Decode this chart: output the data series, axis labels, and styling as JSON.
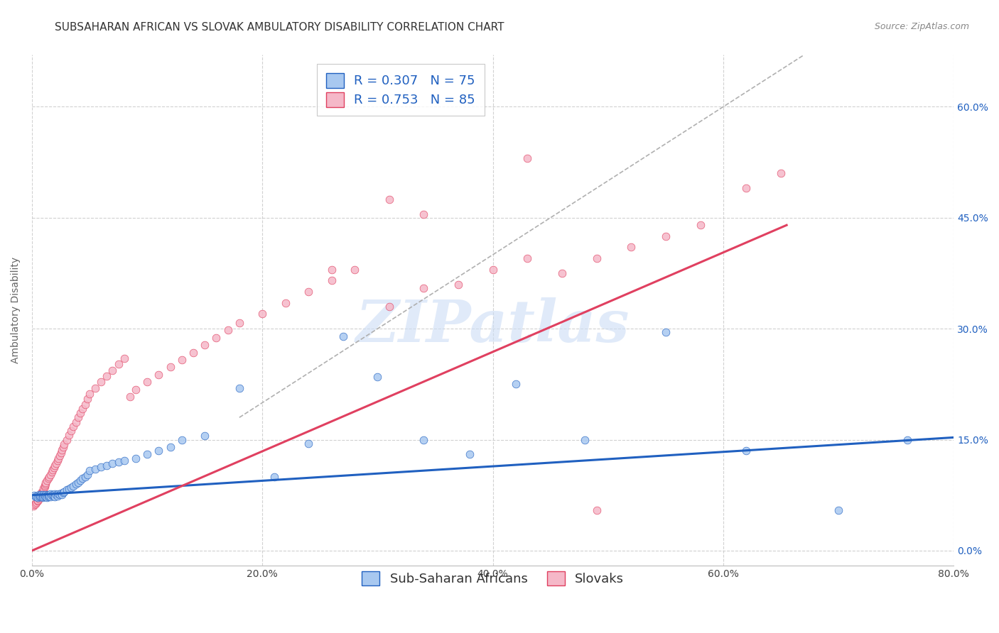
{
  "title": "SUBSAHARAN AFRICAN VS SLOVAK AMBULATORY DISABILITY CORRELATION CHART",
  "source": "Source: ZipAtlas.com",
  "ylabel": "Ambulatory Disability",
  "xlabel_ticks": [
    "0.0%",
    "20.0%",
    "40.0%",
    "60.0%",
    "80.0%"
  ],
  "ylabel_ticks": [
    "0.0%",
    "15.0%",
    "30.0%",
    "45.0%",
    "60.0%"
  ],
  "xlim": [
    0.0,
    0.8
  ],
  "ylim": [
    -0.02,
    0.67
  ],
  "blue_R": 0.307,
  "blue_N": 75,
  "pink_R": 0.753,
  "pink_N": 85,
  "blue_color": "#a8c8f0",
  "pink_color": "#f5b8c8",
  "blue_line_color": "#2060c0",
  "pink_line_color": "#e04060",
  "diagonal_line_color": "#b0b0b0",
  "legend_label_blue": "Sub-Saharan Africans",
  "legend_label_pink": "Slovaks",
  "blue_line_x": [
    0.0,
    0.8
  ],
  "blue_line_y": [
    0.075,
    0.153
  ],
  "pink_line_x": [
    0.0,
    0.655
  ],
  "pink_line_y": [
    0.0,
    0.44
  ],
  "diag_line_x": [
    0.18,
    0.67
  ],
  "diag_line_y": [
    0.18,
    0.67
  ],
  "blue_scatter_x": [
    0.002,
    0.003,
    0.004,
    0.005,
    0.006,
    0.006,
    0.007,
    0.007,
    0.008,
    0.008,
    0.009,
    0.009,
    0.01,
    0.01,
    0.011,
    0.011,
    0.012,
    0.012,
    0.013,
    0.013,
    0.014,
    0.014,
    0.015,
    0.015,
    0.016,
    0.016,
    0.017,
    0.018,
    0.019,
    0.02,
    0.02,
    0.021,
    0.022,
    0.023,
    0.024,
    0.025,
    0.026,
    0.027,
    0.028,
    0.03,
    0.032,
    0.034,
    0.036,
    0.038,
    0.04,
    0.042,
    0.044,
    0.046,
    0.048,
    0.05,
    0.055,
    0.06,
    0.065,
    0.07,
    0.075,
    0.08,
    0.09,
    0.1,
    0.11,
    0.12,
    0.13,
    0.15,
    0.18,
    0.21,
    0.24,
    0.27,
    0.3,
    0.34,
    0.38,
    0.42,
    0.48,
    0.55,
    0.62,
    0.7,
    0.76
  ],
  "blue_scatter_y": [
    0.075,
    0.073,
    0.074,
    0.072,
    0.076,
    0.073,
    0.075,
    0.074,
    0.076,
    0.073,
    0.075,
    0.072,
    0.076,
    0.073,
    0.075,
    0.074,
    0.076,
    0.073,
    0.075,
    0.072,
    0.076,
    0.073,
    0.075,
    0.074,
    0.077,
    0.073,
    0.075,
    0.076,
    0.074,
    0.077,
    0.073,
    0.076,
    0.074,
    0.077,
    0.076,
    0.078,
    0.076,
    0.079,
    0.08,
    0.082,
    0.083,
    0.085,
    0.087,
    0.09,
    0.092,
    0.095,
    0.098,
    0.1,
    0.103,
    0.108,
    0.11,
    0.113,
    0.115,
    0.118,
    0.12,
    0.122,
    0.125,
    0.13,
    0.135,
    0.14,
    0.15,
    0.155,
    0.22,
    0.1,
    0.145,
    0.29,
    0.235,
    0.15,
    0.13,
    0.225,
    0.15,
    0.295,
    0.135,
    0.055,
    0.15
  ],
  "pink_scatter_x": [
    0.001,
    0.002,
    0.003,
    0.004,
    0.005,
    0.005,
    0.006,
    0.006,
    0.007,
    0.007,
    0.008,
    0.008,
    0.009,
    0.01,
    0.01,
    0.011,
    0.011,
    0.012,
    0.012,
    0.013,
    0.014,
    0.015,
    0.016,
    0.017,
    0.018,
    0.019,
    0.02,
    0.021,
    0.022,
    0.023,
    0.024,
    0.025,
    0.026,
    0.027,
    0.028,
    0.03,
    0.032,
    0.034,
    0.036,
    0.038,
    0.04,
    0.042,
    0.044,
    0.046,
    0.048,
    0.05,
    0.055,
    0.06,
    0.065,
    0.07,
    0.075,
    0.08,
    0.085,
    0.09,
    0.1,
    0.11,
    0.12,
    0.13,
    0.14,
    0.15,
    0.16,
    0.17,
    0.18,
    0.2,
    0.22,
    0.24,
    0.26,
    0.28,
    0.31,
    0.34,
    0.37,
    0.4,
    0.43,
    0.46,
    0.49,
    0.52,
    0.55,
    0.58,
    0.62,
    0.65,
    0.34,
    0.26,
    0.31,
    0.43,
    0.49
  ],
  "pink_scatter_y": [
    0.06,
    0.062,
    0.063,
    0.065,
    0.067,
    0.068,
    0.07,
    0.072,
    0.074,
    0.075,
    0.077,
    0.079,
    0.08,
    0.082,
    0.084,
    0.086,
    0.088,
    0.09,
    0.092,
    0.095,
    0.098,
    0.1,
    0.103,
    0.106,
    0.109,
    0.112,
    0.115,
    0.118,
    0.122,
    0.125,
    0.128,
    0.132,
    0.136,
    0.14,
    0.144,
    0.15,
    0.156,
    0.162,
    0.168,
    0.174,
    0.18,
    0.186,
    0.192,
    0.198,
    0.205,
    0.212,
    0.22,
    0.228,
    0.236,
    0.244,
    0.252,
    0.26,
    0.208,
    0.218,
    0.228,
    0.238,
    0.248,
    0.258,
    0.268,
    0.278,
    0.288,
    0.298,
    0.308,
    0.32,
    0.335,
    0.35,
    0.365,
    0.38,
    0.33,
    0.355,
    0.36,
    0.38,
    0.395,
    0.375,
    0.395,
    0.41,
    0.425,
    0.44,
    0.49,
    0.51,
    0.455,
    0.38,
    0.475,
    0.53,
    0.055
  ],
  "watermark": "ZIPatlas",
  "title_fontsize": 11,
  "source_fontsize": 9,
  "axis_label_fontsize": 10,
  "tick_fontsize": 10,
  "legend_fontsize": 13
}
